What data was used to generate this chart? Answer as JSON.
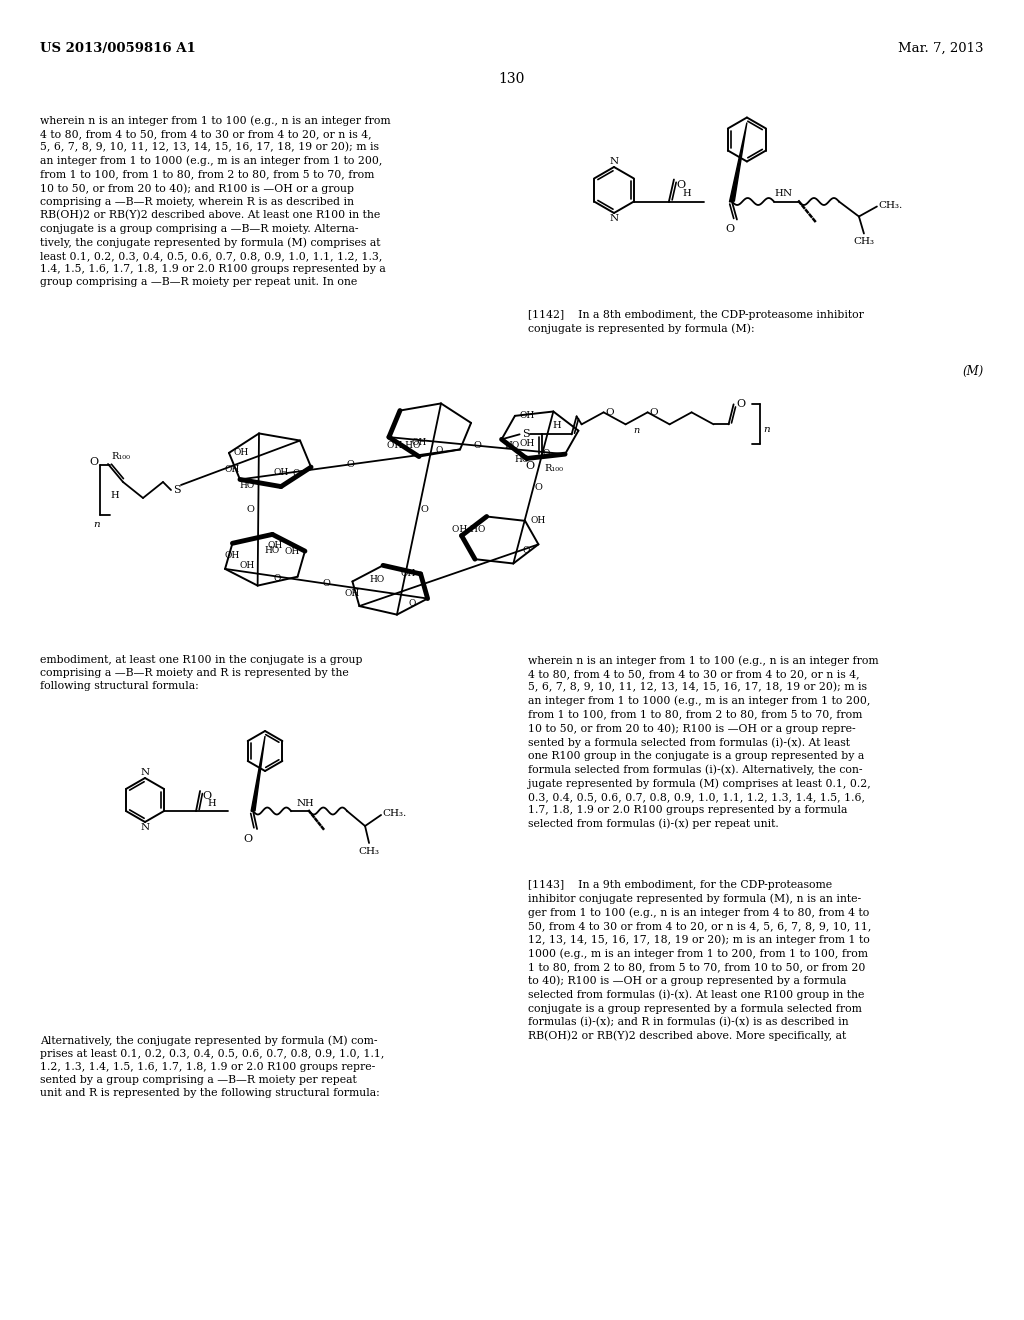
{
  "background_color": "#ffffff",
  "header_left": "US 2013/0059816 A1",
  "header_right": "Mar. 7, 2013",
  "page_number": "130",
  "left_text1": "wherein n is an integer from 1 to 100 (e.g., n is an integer from\n4 to 80, from 4 to 50, from 4 to 30 or from 4 to 20, or n is 4,\n5, 6, 7, 8, 9, 10, 11, 12, 13, 14, 15, 16, 17, 18, 19 or 20); m is\nan integer from 1 to 1000 (e.g., m is an integer from 1 to 200,\nfrom 1 to 100, from 1 to 80, from 2 to 80, from 5 to 70, from\n10 to 50, or from 20 to 40); and R100 is —OH or a group\ncomprising a —B—R moiety, wherein R is as described in\nRB(OH)2 or RB(Y)2 described above. At least one R100 in the\nconjugate is a group comprising a —B—R moiety. Alterna-\ntively, the conjugate represented by formula (M) comprises at\nleast 0.1, 0.2, 0.3, 0.4, 0.5, 0.6, 0.7, 0.8, 0.9, 1.0, 1.1, 1.2, 1.3,\n1.4, 1.5, 1.6, 1.7, 1.8, 1.9 or 2.0 R100 groups represented by a\ngroup comprising a —B—R moiety per repeat unit. In one",
  "right_text1": "[1142]    In a 8th embodiment, the CDP-proteasome inhibitor\nconjugate is represented by formula (M):",
  "formula_M_label": "(M)",
  "left_text2": "embodiment, at least one R100 in the conjugate is a group\ncomprising a —B—R moiety and R is represented by the\nfollowing structural formula:",
  "right_text2": "wherein n is an integer from 1 to 100 (e.g., n is an integer from\n4 to 80, from 4 to 50, from 4 to 30 or from 4 to 20, or n is 4,\n5, 6, 7, 8, 9, 10, 11, 12, 13, 14, 15, 16, 17, 18, 19 or 20); m is\nan integer from 1 to 1000 (e.g., m is an integer from 1 to 200,\nfrom 1 to 100, from 1 to 80, from 2 to 80, from 5 to 70, from\n10 to 50, or from 20 to 40); R100 is —OH or a group repre-\nsented by a formula selected from formulas (i)-(x). At least\none R100 group in the conjugate is a group represented by a\nformula selected from formulas (i)-(x). Alternatively, the con-\njugate represented by formula (M) comprises at least 0.1, 0.2,\n0.3, 0.4, 0.5, 0.6, 0.7, 0.8, 0.9, 1.0, 1.1, 1.2, 1.3, 1.4, 1.5, 1.6,\n1.7, 1.8, 1.9 or 2.0 R100 groups represented by a formula\nselected from formulas (i)-(x) per repeat unit.",
  "right_text3": "[1143]    In a 9th embodiment, for the CDP-proteasome\ninhibitor conjugate represented by formula (M), n is an inte-\nger from 1 to 100 (e.g., n is an integer from 4 to 80, from 4 to\n50, from 4 to 30 or from 4 to 20, or n is 4, 5, 6, 7, 8, 9, 10, 11,\n12, 13, 14, 15, 16, 17, 18, 19 or 20); m is an integer from 1 to\n1000 (e.g., m is an integer from 1 to 200, from 1 to 100, from\n1 to 80, from 2 to 80, from 5 to 70, from 10 to 50, or from 20\nto 40); R100 is —OH or a group represented by a formula\nselected from formulas (i)-(x). At least one R100 group in the\nconjugate is a group represented by a formula selected from\nformulas (i)-(x); and R in formulas (i)-(x) is as described in\nRB(OH)2 or RB(Y)2 described above. More specifically, at",
  "left_text3": "Alternatively, the conjugate represented by formula (M) com-\nprises at least 0.1, 0.2, 0.3, 0.4, 0.5, 0.6, 0.7, 0.8, 0.9, 1.0, 1.1,\n1.2, 1.3, 1.4, 1.5, 1.6, 1.7, 1.8, 1.9 or 2.0 R100 groups repre-\nsented by a group comprising a —B—R moiety per repeat\nunit and R is represented by the following structural formula:"
}
